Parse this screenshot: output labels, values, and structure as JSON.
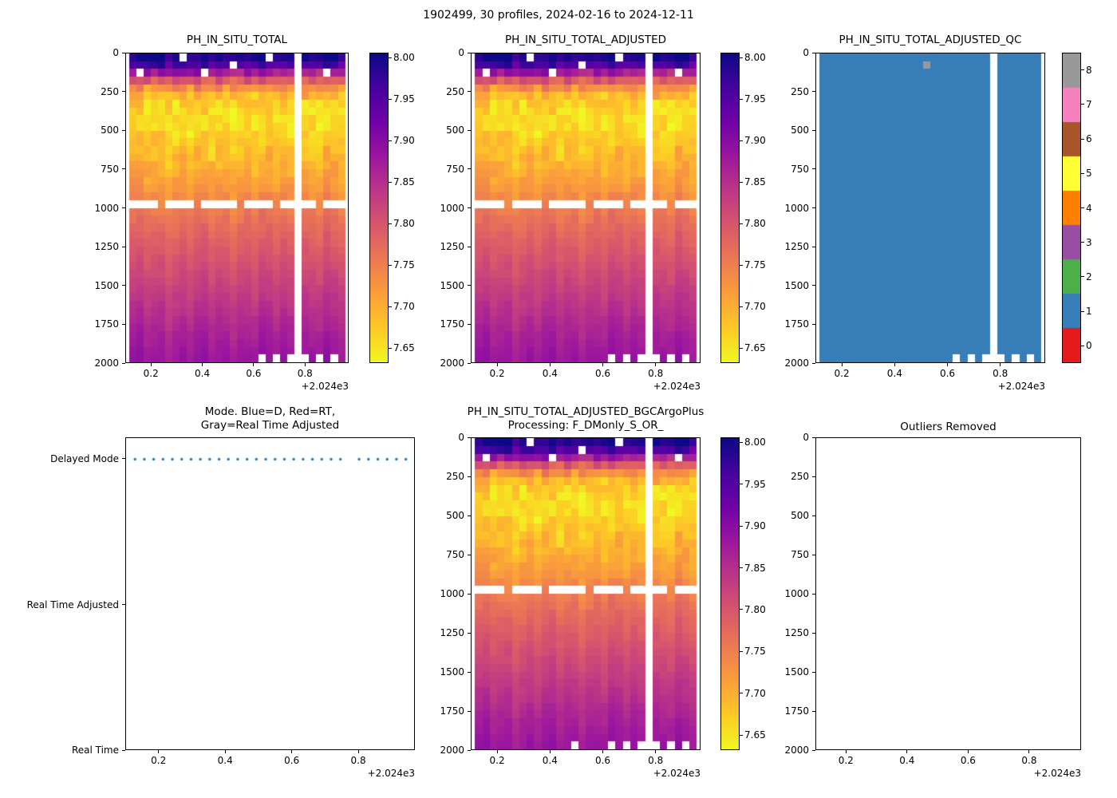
{
  "figure": {
    "title": "1902499, 30 profiles, 2024-02-16 to 2024-12-11",
    "background": "#ffffff",
    "text_color": "#000000"
  },
  "axis": {
    "x_range": [
      0.1,
      0.97
    ],
    "x_tick_values": [
      0.2,
      0.4,
      0.6,
      0.8
    ],
    "x_tick_labels": [
      "0.2",
      "0.4",
      "0.6",
      "0.8"
    ],
    "x_offset_label": "+2.024e3",
    "depth_range": [
      0,
      2000
    ],
    "depth_tick_values": [
      0,
      250,
      500,
      750,
      1000,
      1250,
      1500,
      1750,
      2000
    ],
    "depth_tick_labels": [
      "0",
      "250",
      "500",
      "750",
      "1000",
      "1250",
      "1500",
      "1750",
      "2000"
    ]
  },
  "profiles": {
    "count": 30,
    "time_start": 0.127,
    "time_end": 0.945,
    "missing_profile_index": 23
  },
  "heatmap": {
    "depth_bins": 40,
    "depth_max": 2000,
    "colormap": "plasma_reversed",
    "colormap_stops": [
      "#0d0887",
      "#46039f",
      "#7201a8",
      "#9c179e",
      "#bd3786",
      "#d8576b",
      "#ed7953",
      "#fb9f3a",
      "#fdca26",
      "#f0f921"
    ],
    "color_range": [
      7.632,
      8.006
    ],
    "ph_vs_depth": [
      [
        0,
        8.005
      ],
      [
        40,
        7.99
      ],
      [
        80,
        7.955
      ],
      [
        120,
        7.885
      ],
      [
        160,
        7.815
      ],
      [
        200,
        7.755
      ],
      [
        250,
        7.705
      ],
      [
        300,
        7.675
      ],
      [
        350,
        7.66
      ],
      [
        450,
        7.655
      ],
      [
        550,
        7.67
      ],
      [
        650,
        7.685
      ],
      [
        750,
        7.7
      ],
      [
        850,
        7.72
      ],
      [
        950,
        7.74
      ],
      [
        1000,
        7.75
      ],
      [
        1100,
        7.77
      ],
      [
        1200,
        7.785
      ],
      [
        1350,
        7.805
      ],
      [
        1500,
        7.825
      ],
      [
        1650,
        7.845
      ],
      [
        1800,
        7.865
      ],
      [
        2000,
        7.885
      ]
    ],
    "noise_amp_vs_depth": [
      [
        0,
        0.018
      ],
      [
        100,
        0.03
      ],
      [
        250,
        0.032
      ],
      [
        700,
        0.02
      ],
      [
        1000,
        0.01
      ],
      [
        1300,
        0.006
      ],
      [
        2000,
        0.006
      ]
    ],
    "missing": {
      "depth_line_bin": 19,
      "depth_line_present_indices": [
        4,
        9,
        15,
        20,
        26
      ],
      "bottom_bin": 39,
      "bottom_missing_indices": [
        18,
        20,
        22,
        24,
        26,
        28
      ],
      "surface_missing_cells": [
        [
          1,
          2
        ],
        [
          7,
          0
        ],
        [
          10,
          2
        ],
        [
          14,
          1
        ],
        [
          19,
          0
        ],
        [
          27,
          2
        ]
      ]
    }
  },
  "chart_data": [
    {
      "id": "ph_in_situ_total",
      "type": "heatmap",
      "title": "PH_IN_SITU_TOTAL",
      "xlabel_offset": "+2.024e3",
      "ylim": [
        0,
        2000
      ],
      "color_range": [
        7.632,
        8.006
      ],
      "colorbar_tick_values": [
        8.0,
        7.95,
        7.9,
        7.85,
        7.8,
        7.75,
        7.7,
        7.65
      ],
      "colorbar_tick_labels": [
        "8.00",
        "7.95",
        "7.90",
        "7.85",
        "7.80",
        "7.75",
        "7.70",
        "7.65"
      ]
    },
    {
      "id": "ph_in_situ_total_adjusted",
      "type": "heatmap",
      "title": "PH_IN_SITU_TOTAL_ADJUSTED",
      "xlabel_offset": "+2.024e3",
      "ylim": [
        0,
        2000
      ],
      "color_range": [
        7.632,
        8.006
      ],
      "colorbar_tick_values": [
        8.0,
        7.95,
        7.9,
        7.85,
        7.8,
        7.75,
        7.7,
        7.65
      ],
      "colorbar_tick_labels": [
        "8.00",
        "7.95",
        "7.90",
        "7.85",
        "7.80",
        "7.75",
        "7.70",
        "7.65"
      ]
    },
    {
      "id": "ph_adjusted_qc",
      "type": "categorical_heatmap",
      "title": "PH_IN_SITU_TOTAL_ADJUSTED_QC",
      "constant_value": 1,
      "category_values": [
        0,
        1,
        2,
        3,
        4,
        5,
        6,
        7,
        8
      ],
      "colorbar_tick_labels": [
        "0",
        "1",
        "2",
        "3",
        "4",
        "5",
        "6",
        "7",
        "8"
      ],
      "category_colors": [
        "#e41a1c",
        "#377eb8",
        "#4daf4a",
        "#984ea3",
        "#ff7f00",
        "#ffff33",
        "#a65628",
        "#f781bf",
        "#999999"
      ],
      "special_cells": [
        [
          14,
          1,
          8
        ]
      ]
    },
    {
      "id": "mode",
      "type": "scatter",
      "title_line1": "Mode. Blue=D, Red=RT,",
      "title_line2": "Gray=Real Time Adjusted",
      "y_category_labels": [
        "Delayed Mode",
        "Real Time Adjusted",
        "Real Time"
      ],
      "dot_color": "#1f77b4",
      "mode_of_all_profiles": "Delayed Mode"
    },
    {
      "id": "ph_adjusted_bgcargoplus",
      "type": "heatmap",
      "title_line1": "PH_IN_SITU_TOTAL_ADJUSTED_BGCArgoPlus",
      "title_line2": "Processing: F_DMonly_S_OR_",
      "xlabel_offset": "+2.024e3",
      "ylim": [
        0,
        2000
      ],
      "color_range": [
        7.632,
        8.006
      ],
      "colorbar_tick_values": [
        8.0,
        7.95,
        7.9,
        7.85,
        7.8,
        7.75,
        7.7,
        7.65
      ],
      "colorbar_tick_labels": [
        "8.00",
        "7.95",
        "7.90",
        "7.85",
        "7.80",
        "7.75",
        "7.70",
        "7.65"
      ],
      "extra_missing_cells": [
        [
          13,
          39
        ]
      ]
    },
    {
      "id": "outliers_removed",
      "type": "empty",
      "title": "Outliers Removed",
      "ylim": [
        0,
        2000
      ]
    }
  ]
}
